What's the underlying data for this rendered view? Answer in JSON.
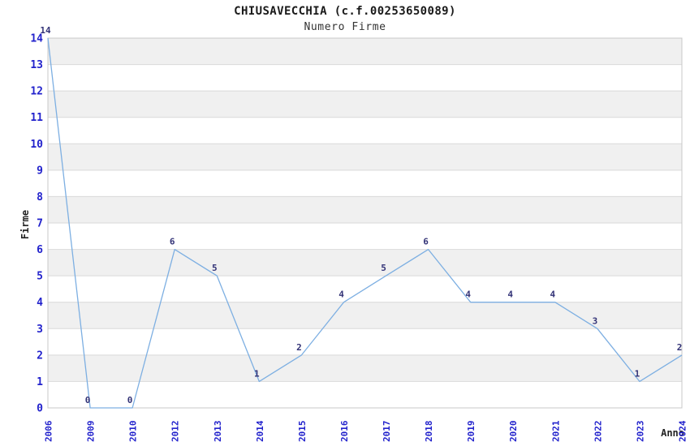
{
  "chart_data": {
    "type": "line",
    "title": "CHIUSAVECCHIA (c.f.00253650089)",
    "subtitle": "Numero Firme",
    "xlabel": "Anno",
    "ylabel": "Firme",
    "categories": [
      "2006",
      "2009",
      "2010",
      "2012",
      "2013",
      "2014",
      "2015",
      "2016",
      "2017",
      "2018",
      "2019",
      "2020",
      "2021",
      "2022",
      "2023",
      "2024"
    ],
    "values": [
      14,
      0,
      0,
      6,
      5,
      1,
      2,
      4,
      5,
      6,
      4,
      4,
      4,
      3,
      1,
      2
    ],
    "ylim": [
      0,
      14
    ],
    "ytick_labels": [
      "0",
      "1",
      "2",
      "3",
      "4",
      "5",
      "6",
      "7",
      "8",
      "9",
      "10",
      "11",
      "12",
      "13",
      "14"
    ],
    "grid": "horizontal",
    "bands": "alternating-gray",
    "legend": "none",
    "colors": {
      "line": "#7dafe2",
      "axis_tick_label": "#2222cc",
      "data_label": "#333377",
      "band": "#f0f0f0",
      "gridline": "#d9d9d9",
      "plot_border": "#c8c8c8",
      "title_text": "#1a1a1a"
    }
  }
}
